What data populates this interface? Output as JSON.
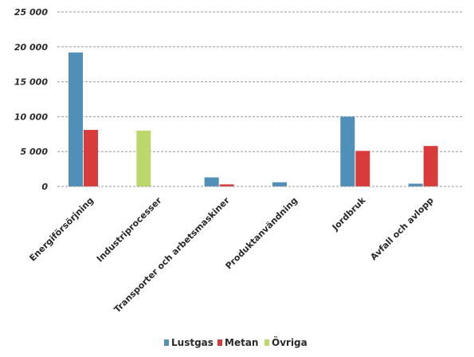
{
  "chart_data": {
    "type": "bar",
    "categories": [
      "Energiförsörjning",
      "Industriprocesser",
      "Transporter och arbetsmaskiner",
      "Produktanvändning",
      "Jordbruk",
      "Avfall och avlopp"
    ],
    "series": [
      {
        "name": "Lustgas",
        "color": "#4f8fb8",
        "values": [
          19200,
          0,
          1300,
          600,
          10000,
          400
        ]
      },
      {
        "name": "Metan",
        "color": "#d93a3a",
        "values": [
          8100,
          0,
          300,
          0,
          5100,
          5800
        ]
      },
      {
        "name": "Övriga",
        "color": "#bcd86a",
        "values": [
          0,
          8000,
          0,
          0,
          0,
          0
        ]
      }
    ],
    "ylim": [
      0,
      25000
    ],
    "yticks": [
      0,
      5000,
      10000,
      15000,
      20000,
      25000
    ],
    "ytick_labels": [
      "0",
      "5 000",
      "10 000",
      "15 000",
      "20 000",
      "25 000"
    ],
    "grid": true,
    "legend_position": "bottom"
  }
}
